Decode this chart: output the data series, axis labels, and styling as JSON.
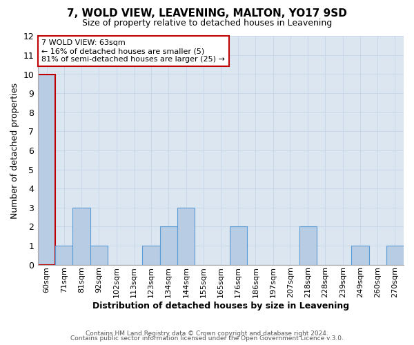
{
  "title": "7, WOLD VIEW, LEAVENING, MALTON, YO17 9SD",
  "subtitle": "Size of property relative to detached houses in Leavening",
  "xlabel": "Distribution of detached houses by size in Leavening",
  "ylabel": "Number of detached properties",
  "categories": [
    "60sqm",
    "71sqm",
    "81sqm",
    "92sqm",
    "102sqm",
    "113sqm",
    "123sqm",
    "134sqm",
    "144sqm",
    "155sqm",
    "165sqm",
    "176sqm",
    "186sqm",
    "197sqm",
    "207sqm",
    "218sqm",
    "228sqm",
    "239sqm",
    "249sqm",
    "260sqm",
    "270sqm"
  ],
  "values": [
    10,
    1,
    3,
    1,
    0,
    0,
    1,
    2,
    3,
    0,
    0,
    2,
    0,
    0,
    0,
    2,
    0,
    0,
    1,
    0,
    1
  ],
  "bar_color": "#b8cce4",
  "bar_edge_color": "#5b9bd5",
  "highlight_bar_index": 0,
  "highlight_bar_edge_color": "#c00000",
  "ylim": [
    0,
    12
  ],
  "yticks": [
    0,
    1,
    2,
    3,
    4,
    5,
    6,
    7,
    8,
    9,
    10,
    11,
    12
  ],
  "annotation_line1": "7 WOLD VIEW: 63sqm",
  "annotation_line2": "← 16% of detached houses are smaller (5)",
  "annotation_line3": "81% of semi-detached houses are larger (25) →",
  "annotation_box_edge_color": "#c00000",
  "annotation_box_facecolor": "#ffffff",
  "grid_color": "#c8d8e8",
  "background_color": "#dce6f1",
  "footer_line1": "Contains HM Land Registry data © Crown copyright and database right 2024.",
  "footer_line2": "Contains public sector information licensed under the Open Government Licence v.3.0."
}
